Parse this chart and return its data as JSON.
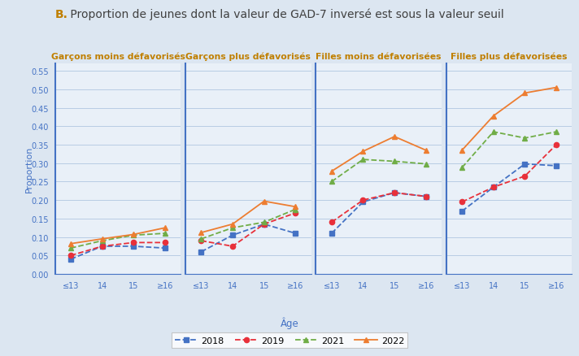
{
  "title_bold": "B.",
  "title_rest": " Proportion de jeunes dont la valeur de GAD-7 inversé est sous la valeur seuil",
  "xlabel": "Âge",
  "ylabel": "Proportion",
  "x_labels": [
    "≤13",
    "14",
    "15",
    "≥16"
  ],
  "ylim": [
    0.0,
    0.57
  ],
  "yticks": [
    0.0,
    0.05,
    0.1,
    0.15,
    0.2,
    0.25,
    0.3,
    0.35,
    0.4,
    0.45,
    0.5,
    0.55
  ],
  "panels": [
    {
      "title": "Garçons moins défavorisés",
      "data": {
        "2018": [
          0.04,
          0.075,
          0.075,
          0.07
        ],
        "2019": [
          0.05,
          0.075,
          0.085,
          0.085
        ],
        "2021": [
          0.07,
          0.09,
          0.105,
          0.11
        ],
        "2022": [
          0.082,
          0.095,
          0.107,
          0.125
        ]
      }
    },
    {
      "title": "Garçons plus défavorisés",
      "data": {
        "2018": [
          0.06,
          0.105,
          0.135,
          0.11
        ],
        "2019": [
          0.09,
          0.075,
          0.135,
          0.165
        ],
        "2021": [
          0.095,
          0.125,
          0.14,
          0.175
        ],
        "2022": [
          0.112,
          0.135,
          0.197,
          0.182
        ]
      }
    },
    {
      "title": "Filles moins défavorisées",
      "data": {
        "2018": [
          0.11,
          0.195,
          0.22,
          0.21
        ],
        "2019": [
          0.14,
          0.2,
          0.22,
          0.21
        ],
        "2021": [
          0.25,
          0.31,
          0.305,
          0.298
        ],
        "2022": [
          0.278,
          0.332,
          0.372,
          0.335
        ]
      }
    },
    {
      "title": "Filles plus défavorisées",
      "data": {
        "2018": [
          0.17,
          0.235,
          0.298,
          0.293
        ],
        "2019": [
          0.195,
          0.235,
          0.265,
          0.35
        ],
        "2021": [
          0.288,
          0.385,
          0.368,
          0.385
        ],
        "2022": [
          0.335,
          0.428,
          0.49,
          0.505
        ]
      }
    }
  ],
  "series": {
    "2018": {
      "color": "#4472c4",
      "marker": "s",
      "linestyle": "--"
    },
    "2019": {
      "color": "#e8303a",
      "marker": "o",
      "linestyle": "--"
    },
    "2021": {
      "color": "#70ad47",
      "marker": "^",
      "linestyle": "--"
    },
    "2022": {
      "color": "#ed7d31",
      "marker": "^",
      "linestyle": "-"
    }
  },
  "legend_labels": [
    "2018",
    "2019",
    "2021",
    "2022"
  ],
  "panel_separator_color": "#4472c4",
  "grid_color": "#b8cce4",
  "bg_color": "#dce6f1",
  "plot_bg": "#e9f0f8",
  "title_color": "#404040",
  "panel_title_color": "#c07f00",
  "axis_label_color": "#4472c4",
  "tick_color": "#4472c4"
}
